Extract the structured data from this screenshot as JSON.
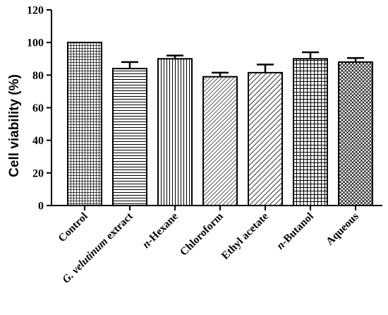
{
  "chart_data": {
    "type": "bar",
    "title": "",
    "xlabel": "",
    "ylabel": "Cell viability (%)",
    "ylim": [
      0,
      120
    ],
    "yticks": [
      0,
      20,
      40,
      60,
      80,
      100,
      120
    ],
    "grid": false,
    "legend": "none",
    "categories": [
      {
        "parts": [
          {
            "t": "Control",
            "i": false
          }
        ]
      },
      {
        "parts": [
          {
            "t": "G. velutinum",
            "i": true
          },
          {
            "t": " extract",
            "i": false
          }
        ]
      },
      {
        "parts": [
          {
            "t": "n",
            "i": true
          },
          {
            "t": "-Hexane",
            "i": false
          }
        ]
      },
      {
        "parts": [
          {
            "t": "Chloroform",
            "i": false
          }
        ]
      },
      {
        "parts": [
          {
            "t": "Ethyl acetate",
            "i": false
          }
        ]
      },
      {
        "parts": [
          {
            "t": "n",
            "i": true
          },
          {
            "t": "-Butanol",
            "i": false
          }
        ]
      },
      {
        "parts": [
          {
            "t": "Aqueous",
            "i": false
          }
        ]
      }
    ],
    "values": [
      100,
      84,
      90,
      79,
      81.5,
      90,
      88
    ],
    "errors": [
      0,
      4,
      2,
      2.5,
      5,
      4,
      2.5
    ],
    "patterns": [
      "grid-fine",
      "horizontal",
      "vertical",
      "diag-down",
      "diag-down-fine",
      "grid-small",
      "crosshatch-diag"
    ]
  }
}
